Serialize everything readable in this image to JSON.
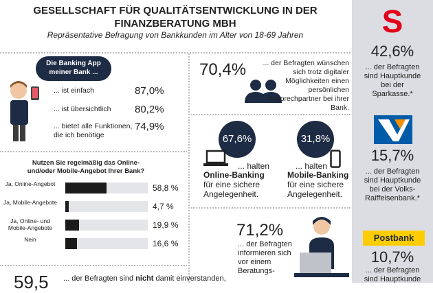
{
  "header": {
    "title": "GESELLSCHAFT FÜR QUALITÄTSENTWICKLUNG IN DER FINANZBERATUNG MBH",
    "subtitle": "Repräsentative Befragung von Bankkunden im Alter von 18-69 Jahren"
  },
  "app": {
    "bubble": "Die Banking App meiner Bank ...",
    "items": [
      {
        "label": "... ist einfach",
        "value": "87,0%"
      },
      {
        "label": "... ist übersichtlich",
        "value": "80,2%"
      },
      {
        "label": "... bietet alle Funktionen, die ich benötige",
        "value": "74,9%"
      }
    ]
  },
  "contact": {
    "value": "70,4%",
    "text": "... der Befragten wünschen sich trotz digitaler Möglichkeiten einen persönlichen Ansprechpartner bei ihrer Bank."
  },
  "online": {
    "value": "67,6%",
    "lead": "... halten",
    "bold": "Online-Banking",
    "rest": "für eine sichere Angelegenheit."
  },
  "mobile": {
    "value": "31,8%",
    "lead": "... halten",
    "bold": "Mobile-Banking",
    "rest": "für eine sichere Angelegenheit."
  },
  "info": {
    "value": "71,2%",
    "text": "... der Befragten informieren sich vor einem Beratungs-"
  },
  "bottom": {
    "value": "59,5",
    "parts": [
      "... der Befragten sind ",
      "nicht",
      " damit einverstanden,"
    ]
  },
  "banks": [
    {
      "logo": "S",
      "value": "42,6%",
      "text": "... der Befragten sind Hauptkunde bei der Sparkasse.*"
    },
    {
      "value": "15,7%",
      "text": "... der Befragten sind Hauptkunde bei der Volks-Raiffeisenbank.*"
    },
    {
      "logo": "Postbank",
      "value": "10,7%",
      "text": "... der Befragten sind Hauptkunde"
    }
  ],
  "chart_data": {
    "type": "bar",
    "title": "Nutzen Sie regelmäßig das Online- und/oder Mobile-Angebot Ihrer Bank?",
    "categories": [
      "Ja, Online-Angebot",
      "Ja, Mobile-Angebote",
      "Ja, Online- und Mobile-Angebote",
      "Nein"
    ],
    "values": [
      58.8,
      4.7,
      19.9,
      16.6
    ],
    "value_labels": [
      "58,8 %",
      "4,7 %",
      "19,9 %",
      "16,6 %"
    ],
    "color": "#1b1b1b"
  }
}
